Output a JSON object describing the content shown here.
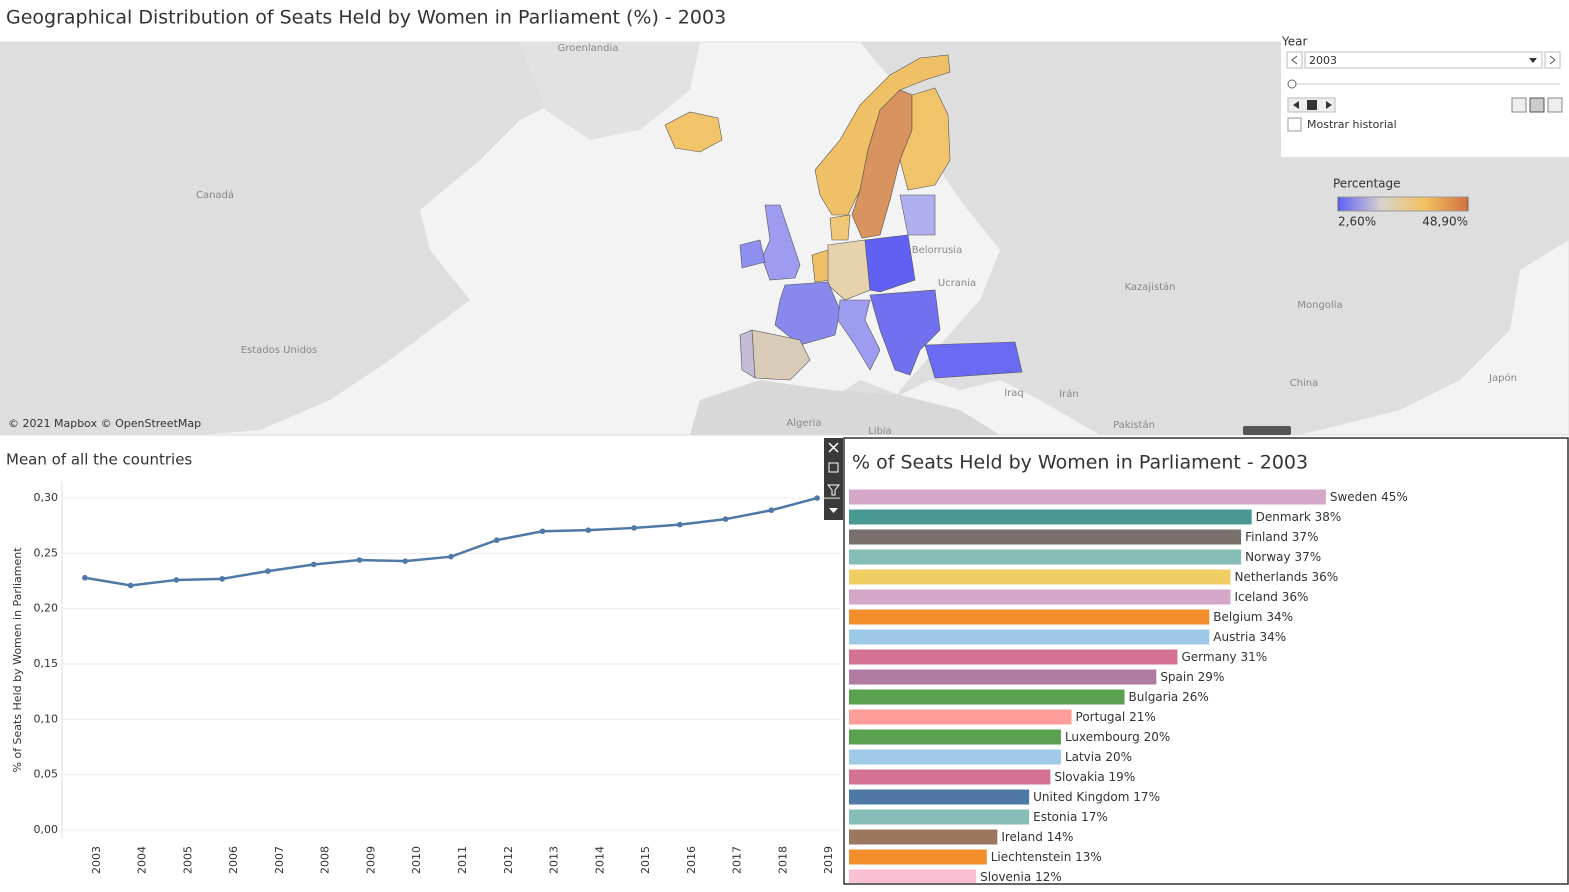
{
  "controls": {
    "label": "Year",
    "selected": "2003",
    "checkbox": "Mostrar historial"
  },
  "chart_data": [
    {
      "type": "map",
      "title": "Geographical Distribution of Seats Held by Women in Parliament (%) - 2003",
      "attribution": "© 2021 Mapbox © OpenStreetMap",
      "place_labels": [
        "Groenlandia",
        "Canadá",
        "Estados Unidos",
        "Belorrusia",
        "Ucrania",
        "Kazajistán",
        "Mongolia",
        "China",
        "Japón",
        "Irán",
        "Iraq",
        "Algeria",
        "Libia",
        "Pakistán"
      ],
      "legend_title": "Percentage",
      "legend_range": [
        {
          "value": 2.6,
          "label": "2,60%"
        },
        {
          "value": 48.9,
          "label": "48,90%"
        }
      ],
      "colors": [
        "#5f5ff7",
        "#d9d4cc",
        "#f2c25f",
        "#d2703f"
      ]
    },
    {
      "type": "line",
      "title": "Mean of all the countries",
      "y_label": "% of Seats Held by Women in Parliament",
      "categories": [
        "2003",
        "2004",
        "2005",
        "2006",
        "2007",
        "2008",
        "2009",
        "2010",
        "2011",
        "2012",
        "2013",
        "2014",
        "2015",
        "2016",
        "2017",
        "2018",
        "2019"
      ],
      "values": [
        0.228,
        0.221,
        0.226,
        0.227,
        0.234,
        0.24,
        0.244,
        0.243,
        0.247,
        0.262,
        0.27,
        0.271,
        0.273,
        0.276,
        0.281,
        0.289,
        0.3
      ],
      "color": "#4e79a7",
      "ylim": [
        0,
        0.31
      ],
      "yticks": [
        {
          "value": 0,
          "label": "0,00"
        },
        {
          "value": 0.05,
          "label": "0,05"
        },
        {
          "value": 0.1,
          "label": "0,10"
        },
        {
          "value": 0.15,
          "label": "0,15"
        },
        {
          "value": 0.2,
          "label": "0,20"
        },
        {
          "value": 0.25,
          "label": "0,25"
        },
        {
          "value": 0.3,
          "label": "0,30"
        }
      ],
      "grid": true
    },
    {
      "type": "bar",
      "orientation": "horizontal",
      "title": "% of Seats Held by Women in Parliament  - 2003",
      "categories": [
        "Sweden",
        "Denmark",
        "Finland",
        "Norway",
        "Netherlands",
        "Iceland",
        "Belgium",
        "Austria",
        "Germany",
        "Spain",
        "Bulgaria",
        "Portugal",
        "Luxembourg",
        "Latvia",
        "Slovakia",
        "United Kingdom",
        "Estonia",
        "Ireland",
        "Liechtenstein",
        "Slovenia"
      ],
      "values": [
        45,
        38,
        37,
        37,
        36,
        36,
        34,
        34,
        31,
        29,
        26,
        21,
        20,
        20,
        19,
        17,
        17,
        14,
        13,
        12
      ],
      "value_labels": [
        "45%",
        "38%",
        "37%",
        "37%",
        "36%",
        "36%",
        "34%",
        "34%",
        "31%",
        "29%",
        "26%",
        "21%",
        "20%",
        "20%",
        "19%",
        "17%",
        "17%",
        "14%",
        "13%",
        "12%"
      ],
      "colors": [
        "#d4a6c8",
        "#499894",
        "#79706e",
        "#86bcb6",
        "#f1ce63",
        "#d4a6c8",
        "#f28e2b",
        "#9dc9e8",
        "#d37295",
        "#b07aa1",
        "#59a14f",
        "#ff9d9a",
        "#59a14f",
        "#a0cbe8",
        "#d37295",
        "#4e79a7",
        "#86bcb6",
        "#9d7660",
        "#f28e2b",
        "#fabfd2"
      ],
      "xlim": [
        0,
        67
      ]
    }
  ]
}
